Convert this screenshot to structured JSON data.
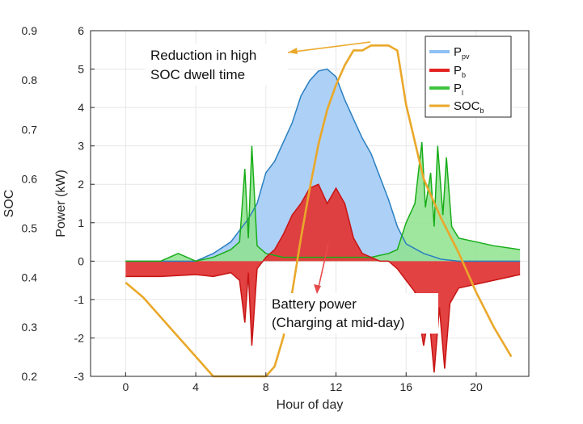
{
  "chart_data": {
    "type": "area",
    "xlabel": "Hour of day",
    "ylabel_left": "SOC",
    "ylabel_right": "Power (kW)",
    "xlim": [
      -2,
      23
    ],
    "ylim_power": [
      -3,
      6
    ],
    "ylim_soc": [
      0.2,
      0.9
    ],
    "x_ticks": [
      0,
      4,
      8,
      12,
      16,
      20
    ],
    "power_ticks": [
      -3,
      -2,
      -1,
      0,
      1,
      2,
      3,
      4,
      5,
      6
    ],
    "soc_ticks": [
      0.2,
      0.3,
      0.4,
      0.5,
      0.6,
      0.7,
      0.8,
      0.9
    ],
    "grid": true,
    "legend_placement": "top-right",
    "legend": [
      {
        "main": "P",
        "sub": "pv",
        "color": "#8fbff5"
      },
      {
        "main": "P",
        "sub": "b",
        "color": "#e32222"
      },
      {
        "main": "P",
        "sub": "l",
        "color": "#3ec43e"
      },
      {
        "main": "SOC",
        "sub": "b",
        "color": "#eaa82a"
      }
    ],
    "series": [
      {
        "key": "pv",
        "fill_color": "#a9cdf7",
        "line_color": "#2a7fc0",
        "x": [
          0,
          4,
          5,
          6,
          6.5,
          7,
          7.5,
          8,
          8.5,
          9,
          9.5,
          10,
          10.5,
          11,
          11.5,
          12,
          12.5,
          13,
          13.5,
          14,
          14.5,
          15,
          15.5,
          16,
          17,
          18,
          19,
          20,
          22.5
        ],
        "y": [
          0,
          0,
          0.2,
          0.5,
          0.8,
          1.1,
          1.5,
          2.3,
          2.6,
          3.1,
          3.6,
          4.3,
          4.7,
          4.95,
          5.0,
          4.8,
          4.2,
          3.7,
          3.2,
          2.8,
          2.2,
          1.6,
          0.9,
          0.45,
          0.2,
          0.05,
          0,
          0,
          0
        ]
      },
      {
        "key": "b",
        "fill_color": "#e03838",
        "line_color": "#c81414",
        "x": [
          0,
          2,
          4,
          5,
          6,
          6.5,
          6.8,
          7,
          7.2,
          7.5,
          8,
          8.5,
          9,
          9.5,
          10,
          10.5,
          11,
          11.5,
          12,
          12.5,
          13,
          13.5,
          14,
          14.5,
          15,
          15.5,
          16,
          16.5,
          17,
          17.3,
          17.6,
          17.9,
          18.2,
          18.5,
          19,
          20,
          21,
          22.5
        ],
        "y": [
          -0.4,
          -0.4,
          -0.35,
          -0.4,
          -0.3,
          -0.5,
          -1.6,
          -0.3,
          -2.2,
          -0.2,
          0.1,
          0.3,
          0.7,
          1.2,
          1.5,
          1.9,
          2.0,
          1.5,
          1.9,
          1.5,
          0.6,
          0.2,
          0.1,
          0,
          0,
          -0.2,
          -0.5,
          -0.8,
          -2.2,
          -1.4,
          -2.9,
          -1.2,
          -2.8,
          -1.1,
          -0.7,
          -0.6,
          -0.5,
          -0.35
        ]
      },
      {
        "key": "l",
        "fill_color": "#8ee28e",
        "line_color": "#19ad19",
        "x": [
          0,
          2,
          3,
          4,
          5,
          6,
          6.5,
          6.8,
          7,
          7.2,
          7.5,
          8,
          9,
          10,
          11,
          12,
          13,
          14,
          15,
          15.5,
          16,
          16.5,
          16.9,
          17.1,
          17.4,
          17.6,
          17.8,
          18.1,
          18.3,
          18.6,
          19,
          20,
          21,
          22.5
        ],
        "y": [
          0,
          0,
          0.2,
          0,
          0.1,
          0.3,
          0.5,
          2.4,
          0.6,
          3.0,
          0.4,
          0.2,
          0.1,
          0.1,
          0.1,
          0.1,
          0.1,
          0.1,
          0.2,
          0.3,
          1.0,
          1.5,
          3.1,
          1.4,
          2.3,
          0.9,
          3.0,
          1.2,
          2.7,
          0.9,
          0.6,
          0.5,
          0.4,
          0.3
        ]
      },
      {
        "key": "soc",
        "axis": "soc",
        "line_color": "#eaa82a",
        "x": [
          0,
          1,
          2,
          3,
          4,
          5,
          6,
          7,
          7.5,
          8,
          8.5,
          9,
          9.5,
          10,
          10.5,
          11,
          11.5,
          12,
          12.5,
          13,
          13.5,
          14,
          15,
          15.5,
          16,
          17,
          18,
          19,
          20,
          21,
          22
        ],
        "y": [
          0.39,
          0.36,
          0.32,
          0.28,
          0.24,
          0.2,
          0.2,
          0.2,
          0.2,
          0.2,
          0.22,
          0.28,
          0.37,
          0.48,
          0.58,
          0.67,
          0.74,
          0.79,
          0.83,
          0.86,
          0.86,
          0.87,
          0.87,
          0.86,
          0.75,
          0.6,
          0.52,
          0.45,
          0.37,
          0.3,
          0.24
        ]
      }
    ],
    "annotations": [
      {
        "lines": [
          "Reduction in high",
          "SOC  dwell time"
        ]
      },
      {
        "lines": [
          "Battery power",
          "(Charging at mid-day)"
        ]
      }
    ]
  }
}
